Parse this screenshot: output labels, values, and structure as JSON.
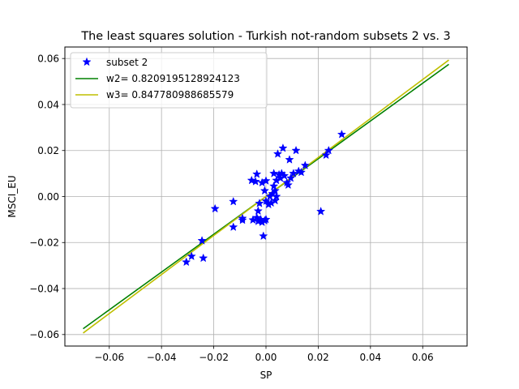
{
  "chart_data": {
    "type": "scatter",
    "title": "The least squares solution - Turkish not-random subsets 2 vs. 3",
    "xlabel": "SP",
    "ylabel": "MSCI_EU",
    "xlim": [
      -0.077,
      0.077
    ],
    "ylim": [
      -0.065,
      0.065
    ],
    "xticks": [
      -0.06,
      -0.04,
      -0.02,
      0.0,
      0.02,
      0.04,
      0.06
    ],
    "yticks": [
      -0.06,
      -0.04,
      -0.02,
      0.0,
      0.02,
      0.04,
      0.06
    ],
    "xtick_labels": [
      "−0.06",
      "−0.04",
      "−0.02",
      "0.00",
      "0.02",
      "0.04",
      "0.06"
    ],
    "ytick_labels": [
      "−0.06",
      "−0.04",
      "−0.02",
      "0.00",
      "0.02",
      "0.04",
      "0.06"
    ],
    "grid": true,
    "legend_position": "top-left",
    "series": [
      {
        "name": "subset 2",
        "kind": "scatter",
        "marker": "star",
        "color": "#0000ff",
        "points": [
          [
            -0.0305,
            -0.0285
          ],
          [
            -0.0285,
            -0.026
          ],
          [
            -0.0245,
            -0.0192
          ],
          [
            -0.024,
            -0.0268
          ],
          [
            -0.0195,
            -0.0053
          ],
          [
            -0.0125,
            -0.0022
          ],
          [
            -0.0125,
            -0.0133
          ],
          [
            -0.009,
            -0.0095
          ],
          [
            -0.009,
            -0.0103
          ],
          [
            -0.0055,
            0.007
          ],
          [
            -0.005,
            -0.0102
          ],
          [
            -0.004,
            0.0065
          ],
          [
            -0.0035,
            0.0097
          ],
          [
            -0.0035,
            -0.0092
          ],
          [
            -0.003,
            -0.0108
          ],
          [
            -0.003,
            -0.0063
          ],
          [
            -0.0025,
            -0.003
          ],
          [
            -0.002,
            -0.01
          ],
          [
            -0.0015,
            0.006
          ],
          [
            -0.0015,
            -0.0112
          ],
          [
            -0.001,
            -0.0172
          ],
          [
            -0.0005,
            0.0025
          ],
          [
            -0.0005,
            -0.0105
          ],
          [
            0.0,
            0.0068
          ],
          [
            0.0,
            -0.002
          ],
          [
            0.0,
            -0.01
          ],
          [
            0.001,
            -0.0035
          ],
          [
            0.0015,
            0.0
          ],
          [
            0.002,
            -0.0028
          ],
          [
            0.0025,
            0.0012
          ],
          [
            0.003,
            0.01
          ],
          [
            0.003,
            0.0045
          ],
          [
            0.0035,
            -0.0018
          ],
          [
            0.0035,
            0.0025
          ],
          [
            0.004,
            0.007
          ],
          [
            0.004,
            0.0
          ],
          [
            0.0045,
            0.0185
          ],
          [
            0.005,
            0.0095
          ],
          [
            0.0055,
            0.008
          ],
          [
            0.006,
            0.01
          ],
          [
            0.0065,
            0.021
          ],
          [
            0.007,
            0.009
          ],
          [
            0.008,
            0.006
          ],
          [
            0.0085,
            0.005
          ],
          [
            0.009,
            0.016
          ],
          [
            0.0095,
            0.008
          ],
          [
            0.0105,
            0.01
          ],
          [
            0.0115,
            0.02
          ],
          [
            0.0125,
            0.011
          ],
          [
            0.0135,
            0.0105
          ],
          [
            0.015,
            0.0135
          ],
          [
            0.021,
            -0.0065
          ],
          [
            0.023,
            0.018
          ],
          [
            0.024,
            0.02
          ],
          [
            0.029,
            0.027
          ]
        ]
      },
      {
        "name": "w2= 0.8209195128924123",
        "kind": "line",
        "color": "#008000",
        "slope": 0.8209195128924123,
        "x_range": [
          -0.07,
          0.07
        ]
      },
      {
        "name": "w3= 0.847780988685579",
        "kind": "line",
        "color": "#bfbf00",
        "slope": 0.847780988685579,
        "x_range": [
          -0.07,
          0.07
        ]
      }
    ]
  }
}
